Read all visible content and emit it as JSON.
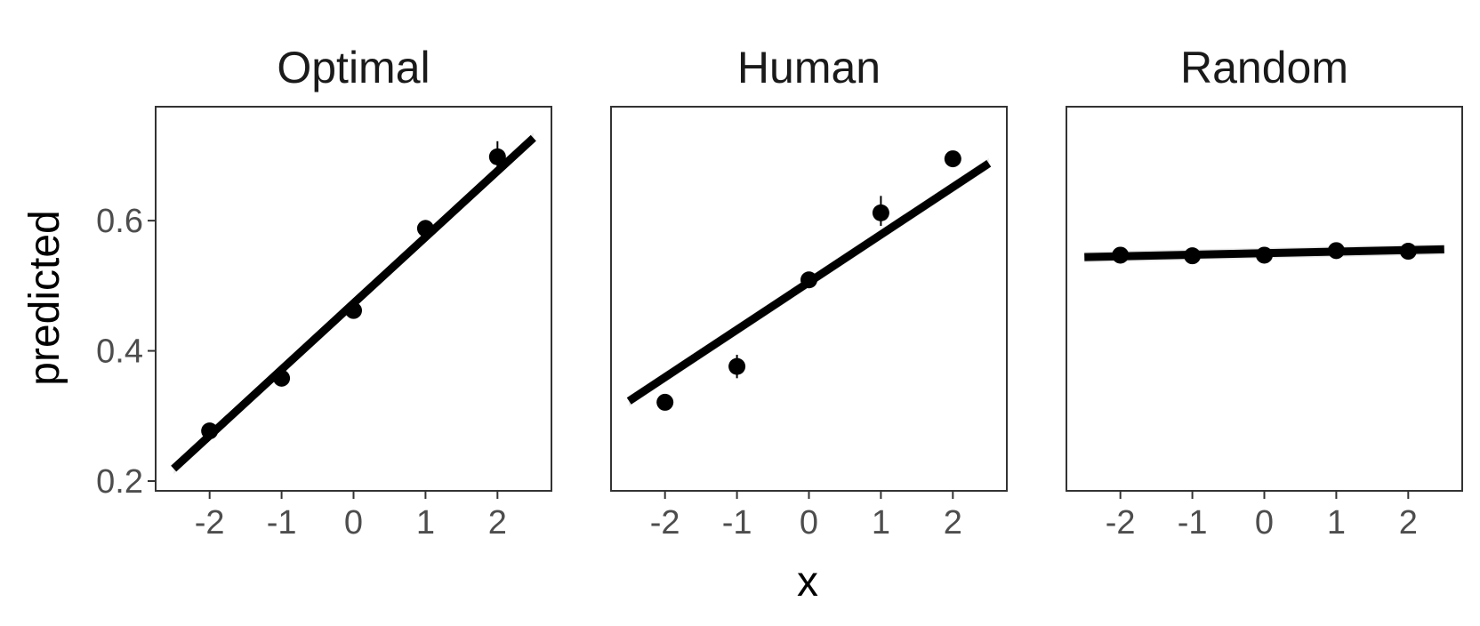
{
  "chart_data": {
    "type": "scatter",
    "facets": [
      "Optimal",
      "Human",
      "Random"
    ],
    "xlabel": "x",
    "ylabel": "predicted",
    "x_ticks": [
      -2,
      -1,
      0,
      1,
      2
    ],
    "x_tick_labels": [
      "-2",
      "-1",
      "0",
      "1",
      "2"
    ],
    "y_ticks": [
      0.2,
      0.4,
      0.6
    ],
    "y_tick_labels": [
      "0.2",
      "0.4",
      "0.6"
    ],
    "xlim": [
      -2.75,
      2.75
    ],
    "ylim": [
      0.185,
      0.775
    ],
    "grid": false,
    "legend": "none",
    "series": [
      {
        "name": "Optimal",
        "x": [
          -2,
          -1,
          0,
          1,
          2
        ],
        "y": [
          0.277,
          0.358,
          0.462,
          0.588,
          0.698
        ],
        "err_low": [
          0.266,
          0.347,
          0.45,
          0.578,
          0.683
        ],
        "err_high": [
          0.289,
          0.369,
          0.474,
          0.601,
          0.722
        ],
        "fit_line": {
          "x": [
            -2.5,
            2.5
          ],
          "y": [
            0.219,
            0.727
          ]
        }
      },
      {
        "name": "Human",
        "x": [
          -2,
          -1,
          0,
          1,
          2
        ],
        "y": [
          0.321,
          0.376,
          0.509,
          0.612,
          0.695
        ],
        "err_low": [
          0.317,
          0.358,
          0.505,
          0.592,
          0.691
        ],
        "err_high": [
          0.325,
          0.394,
          0.513,
          0.638,
          0.699
        ],
        "fit_line": {
          "x": [
            -2.5,
            2.5
          ],
          "y": [
            0.323,
            0.688
          ]
        }
      },
      {
        "name": "Random",
        "x": [
          -2,
          -1,
          0,
          1,
          2
        ],
        "y": [
          0.547,
          0.546,
          0.547,
          0.554,
          0.553
        ],
        "err_low": [
          0.543,
          0.542,
          0.543,
          0.55,
          0.549
        ],
        "err_high": [
          0.551,
          0.55,
          0.551,
          0.558,
          0.557
        ],
        "fit_line": {
          "x": [
            -2.5,
            2.5
          ],
          "y": [
            0.544,
            0.556
          ]
        }
      }
    ],
    "colors": {
      "points": "#000000",
      "fit_line": "#000000",
      "frame": "#333333",
      "tick_text": "#4d4d4d"
    }
  }
}
